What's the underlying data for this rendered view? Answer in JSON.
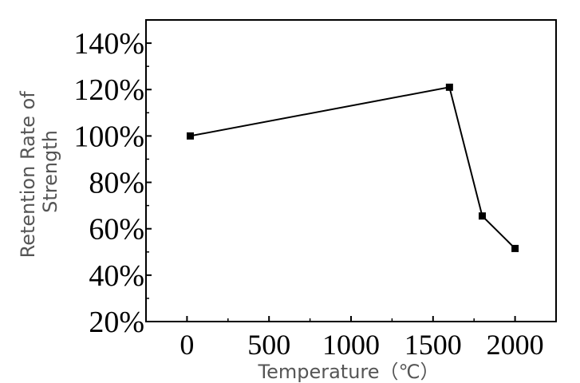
{
  "chart_data": {
    "type": "line",
    "title": "",
    "xlabel": "Temperature（℃）",
    "ylabel": [
      "Retention Rate of",
      "Strength"
    ],
    "xlim": [
      -250,
      2250
    ],
    "ylim": [
      20,
      150
    ],
    "x_ticks": [
      0,
      500,
      1000,
      1500,
      2000
    ],
    "x_tick_labels": [
      "0",
      "500",
      "1000",
      "1500",
      "2000"
    ],
    "y_ticks": [
      20,
      40,
      60,
      80,
      100,
      120,
      140
    ],
    "y_tick_labels": [
      "20%",
      "40%",
      "60%",
      "80%",
      "100%",
      "120%",
      "140%"
    ],
    "grid": false,
    "series": [
      {
        "color": "#000000",
        "marker": "square",
        "x": [
          20,
          1600,
          1800,
          2000
        ],
        "y": [
          100,
          121,
          65.5,
          51.5
        ]
      }
    ]
  }
}
